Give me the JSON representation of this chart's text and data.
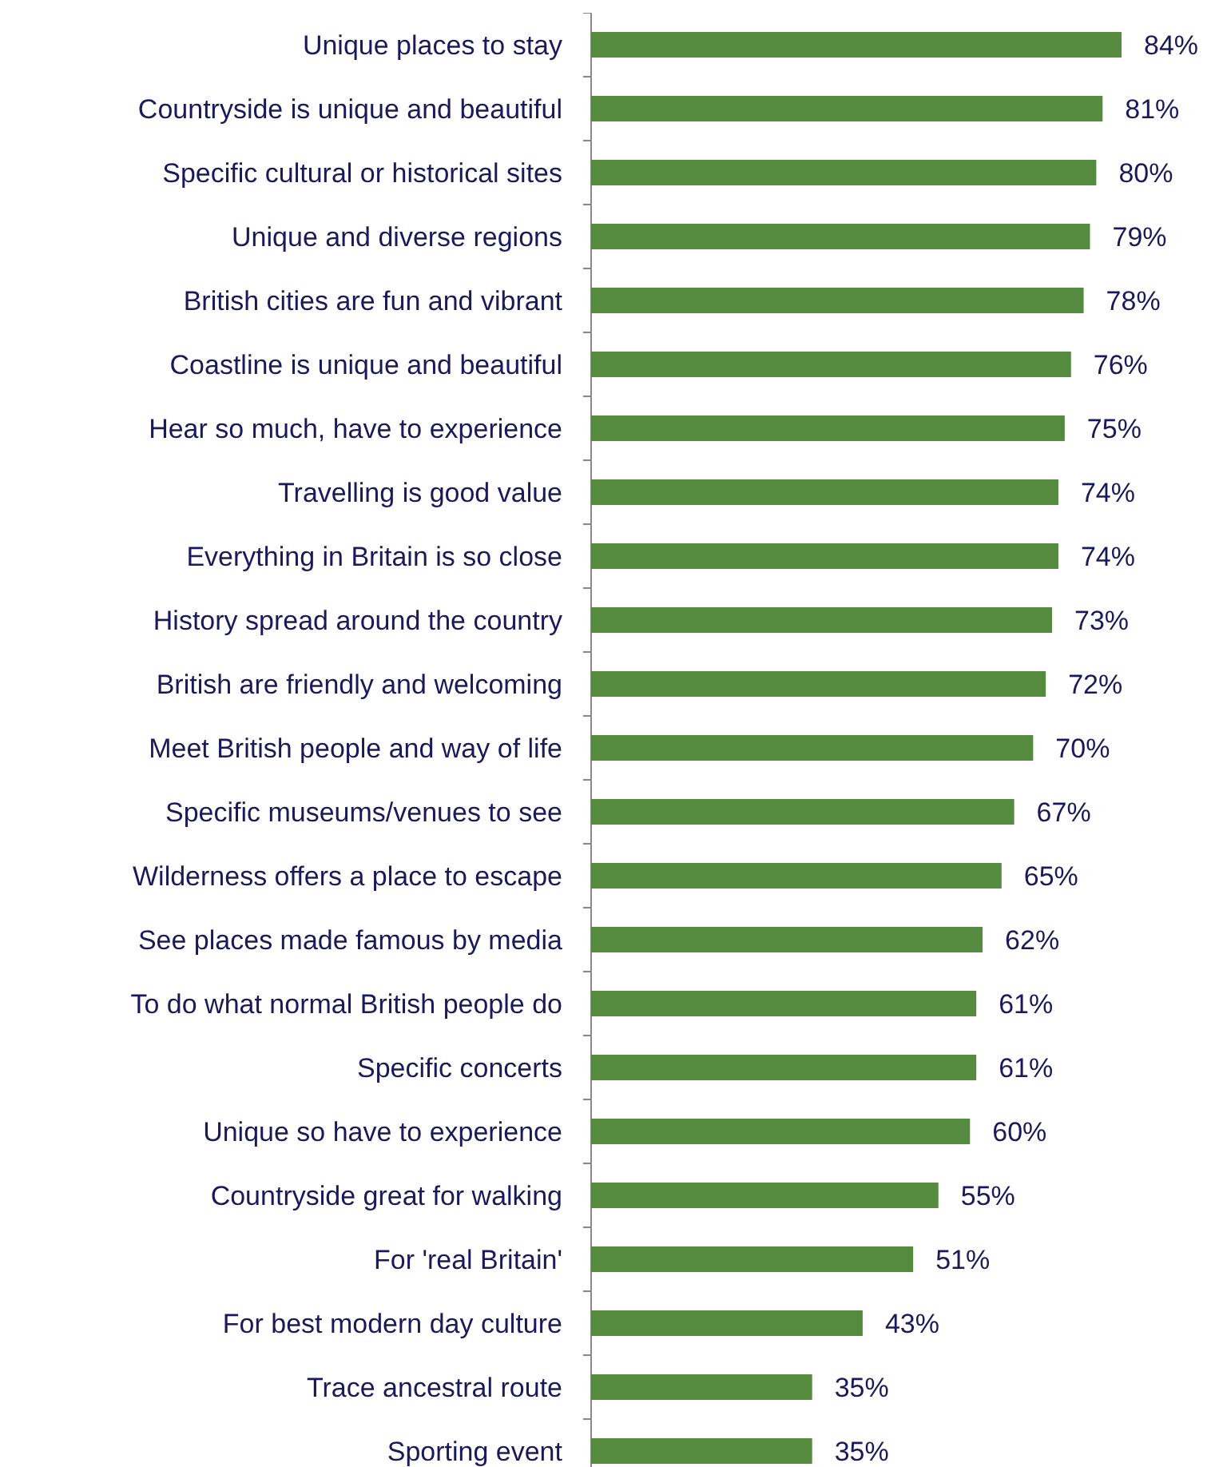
{
  "chart_data": {
    "type": "bar",
    "orientation": "horizontal",
    "categories": [
      "Unique places to stay",
      "Countryside is unique and beautiful",
      "Specific cultural or historical sites",
      "Unique and diverse regions",
      "British cities are fun and vibrant",
      "Coastline is unique and beautiful",
      "Hear so much, have to experience",
      "Travelling is good value",
      "Everything in Britain is so close",
      "History spread around the country",
      "British are friendly and welcoming",
      "Meet British people and way of life",
      "Specific museums/venues to see",
      "Wilderness offers a place to escape",
      "See places made famous by media",
      "To do what normal British people do",
      "Specific concerts",
      "Unique so have to experience",
      "Countryside great for walking",
      "For 'real Britain'",
      "For best modern day culture",
      "Trace ancestral route",
      "Sporting event"
    ],
    "values": [
      84,
      81,
      80,
      79,
      78,
      76,
      75,
      74,
      74,
      73,
      72,
      70,
      67,
      65,
      62,
      61,
      61,
      60,
      55,
      51,
      43,
      35,
      35
    ],
    "value_labels": [
      "84%",
      "81%",
      "80%",
      "79%",
      "78%",
      "76%",
      "75%",
      "74%",
      "74%",
      "73%",
      "72%",
      "70%",
      "67%",
      "65%",
      "62%",
      "61%",
      "61%",
      "60%",
      "55%",
      "51%",
      "43%",
      "35%",
      "35%"
    ],
    "color": "#558b3f"
  }
}
